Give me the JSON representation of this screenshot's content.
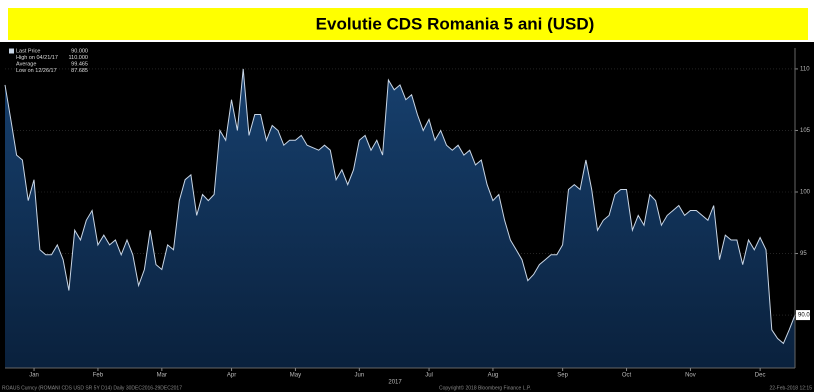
{
  "chart_data": {
    "type": "area",
    "title": "Evolutie CDS Romania 5 ani (USD)",
    "values": [
      108.7,
      105.9,
      103,
      102.6,
      99.3,
      101,
      95.3,
      94.9,
      94.9,
      95.7,
      94.5,
      92,
      96.9,
      96.1,
      97.7,
      98.5,
      95.7,
      96.5,
      95.7,
      96.1,
      94.9,
      96.1,
      94.9,
      92.4,
      93.7,
      96.9,
      94.1,
      93.7,
      95.7,
      95.3,
      99.3,
      101,
      101.4,
      98.1,
      99.8,
      99.3,
      99.8,
      105,
      104.2,
      107.5,
      105,
      110,
      104.6,
      106.3,
      106.3,
      104.2,
      105.4,
      105,
      103.8,
      104.2,
      104.2,
      104.6,
      103.8,
      103.6,
      103.4,
      103.8,
      103.4,
      101,
      101.8,
      100.6,
      101.8,
      104.2,
      104.6,
      103.4,
      104.2,
      103,
      109.1,
      108.3,
      108.7,
      107.5,
      107.9,
      106.3,
      105,
      105.9,
      104.2,
      105,
      103.8,
      103.4,
      103.8,
      103,
      103.4,
      102.2,
      102.6,
      100.6,
      99.3,
      99.8,
      97.7,
      96.1,
      95.3,
      94.5,
      92.8,
      93.3,
      94.1,
      94.5,
      94.9,
      94.9,
      95.7,
      100.2,
      100.6,
      100.2,
      102.6,
      100.2,
      96.9,
      97.7,
      98.1,
      99.8,
      100.2,
      100.2,
      96.9,
      98.1,
      97.3,
      99.8,
      99.3,
      97.3,
      98.1,
      98.5,
      98.9,
      98.1,
      98.5,
      98.5,
      98.1,
      97.7,
      98.9,
      94.5,
      96.5,
      96.1,
      96.1,
      94.1,
      96.1,
      95.3,
      96.3,
      95.3,
      88.8,
      88.1,
      87.7,
      88.8,
      90
    ],
    "color": "#0e2c50",
    "line_color": "#c9d6e6",
    "xlim": [
      0,
      136
    ],
    "xticks": [
      {
        "value": 5,
        "label": "Jan"
      },
      {
        "value": 16,
        "label": "Feb"
      },
      {
        "value": 27,
        "label": "Mar"
      },
      {
        "value": 39,
        "label": "Apr"
      },
      {
        "value": 50,
        "label": "May"
      },
      {
        "value": 61,
        "label": "Jun"
      },
      {
        "value": 73,
        "label": "Jul"
      },
      {
        "value": 84,
        "label": "Aug"
      },
      {
        "value": 96,
        "label": "Sep"
      },
      {
        "value": 107,
        "label": "Oct"
      },
      {
        "value": 118,
        "label": "Nov"
      },
      {
        "value": 130,
        "label": "Dec"
      }
    ],
    "x_year_label": "2017",
    "ylim": [
      85.7,
      111.7
    ],
    "yticks": [
      90,
      95,
      100,
      105,
      110
    ],
    "grid": true,
    "last_tag": "90.0",
    "legend": [
      {
        "label": "Last Price",
        "value": "90.000"
      },
      {
        "label": "High on 04/21/17",
        "value": "110.000"
      },
      {
        "label": "Average",
        "value": "99.465"
      },
      {
        "label": "Low on 12/26/17",
        "value": "87.685"
      }
    ],
    "footer": [
      "ROAUS Curncy (ROMANI CDS USD SR 5Y D14) Daily 30DEC2016-29DEC2017",
      "Copyright© 2018 Bloomberg Finance L.P.",
      "22-Feb-2018 12:15"
    ]
  }
}
